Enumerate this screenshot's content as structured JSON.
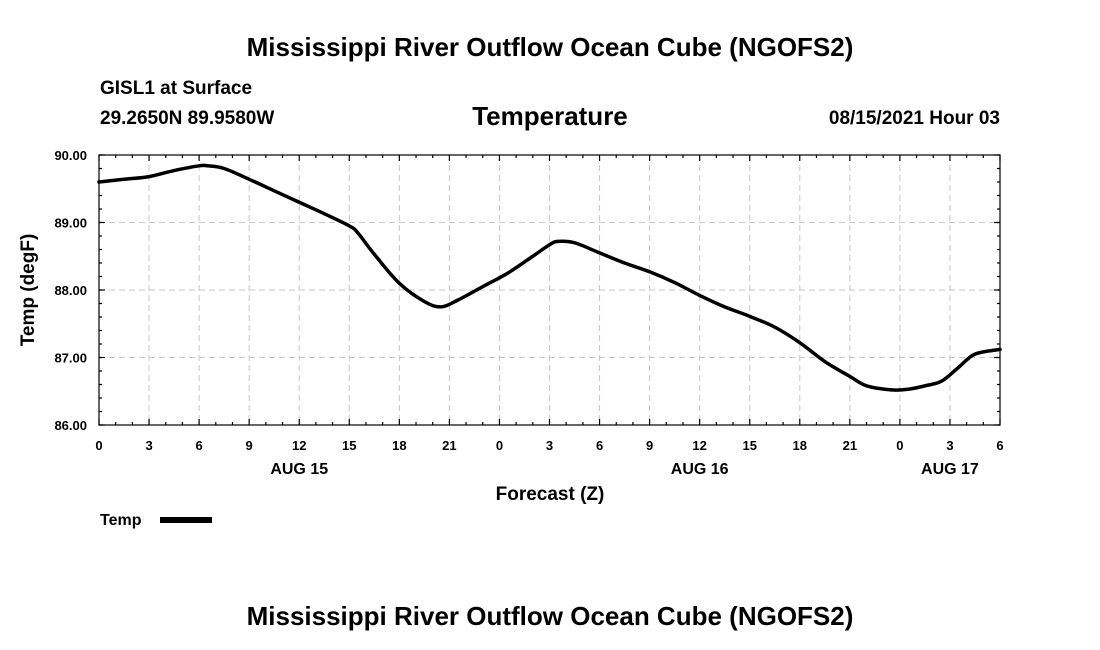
{
  "chart_data": {
    "type": "line",
    "title": "Mississippi River Outflow Ocean Cube (NGOFS2)",
    "footer_title": "Mississippi River Outflow Ocean Cube (NGOFS2)",
    "station": "GISL1 at Surface",
    "location": "29.2650N  89.9580W",
    "variable_title": "Temperature",
    "date_label": "08/15/2021 Hour 03",
    "xlabel": "Forecast (Z)",
    "ylabel": "Temp (degF)",
    "ylim": [
      86.0,
      90.0
    ],
    "xlim": [
      0,
      54
    ],
    "y_ticks": [
      "86.00",
      "87.00",
      "88.00",
      "89.00",
      "90.00"
    ],
    "x_ticks": [
      "0",
      "3",
      "6",
      "9",
      "12",
      "15",
      "18",
      "21",
      "0",
      "3",
      "6",
      "9",
      "12",
      "15",
      "18",
      "21",
      "0",
      "3",
      "6"
    ],
    "day_labels": [
      {
        "label": "AUG 15",
        "x": 12
      },
      {
        "label": "AUG 16",
        "x": 36
      },
      {
        "label": "AUG 17",
        "x": 51
      }
    ],
    "grid": true,
    "series": [
      {
        "name": "Temp",
        "color": "#000000",
        "x": [
          0,
          1.5,
          3,
          4.5,
          6,
          6.5,
          7.5,
          9,
          10.5,
          12,
          13.5,
          15,
          15.5,
          16.5,
          18,
          19.5,
          20.5,
          21.5,
          23,
          24.5,
          26,
          27,
          27.5,
          28.5,
          30,
          31.5,
          33,
          34.5,
          36,
          37.5,
          39,
          40.5,
          42,
          43.5,
          45,
          46,
          47.5,
          48.5,
          49.5,
          50.5,
          51.5,
          52.5,
          54
        ],
        "values": [
          89.6,
          89.64,
          89.68,
          89.77,
          89.84,
          89.84,
          89.8,
          89.64,
          89.47,
          89.3,
          89.13,
          88.95,
          88.85,
          88.53,
          88.1,
          87.83,
          87.75,
          87.85,
          88.05,
          88.25,
          88.5,
          88.67,
          88.72,
          88.7,
          88.55,
          88.4,
          88.27,
          88.11,
          87.92,
          87.75,
          87.61,
          87.45,
          87.22,
          86.94,
          86.72,
          86.58,
          86.52,
          86.53,
          86.58,
          86.65,
          86.85,
          87.05,
          87.12
        ]
      }
    ],
    "legend": {
      "label": "Temp",
      "position": "bottom-left"
    }
  }
}
